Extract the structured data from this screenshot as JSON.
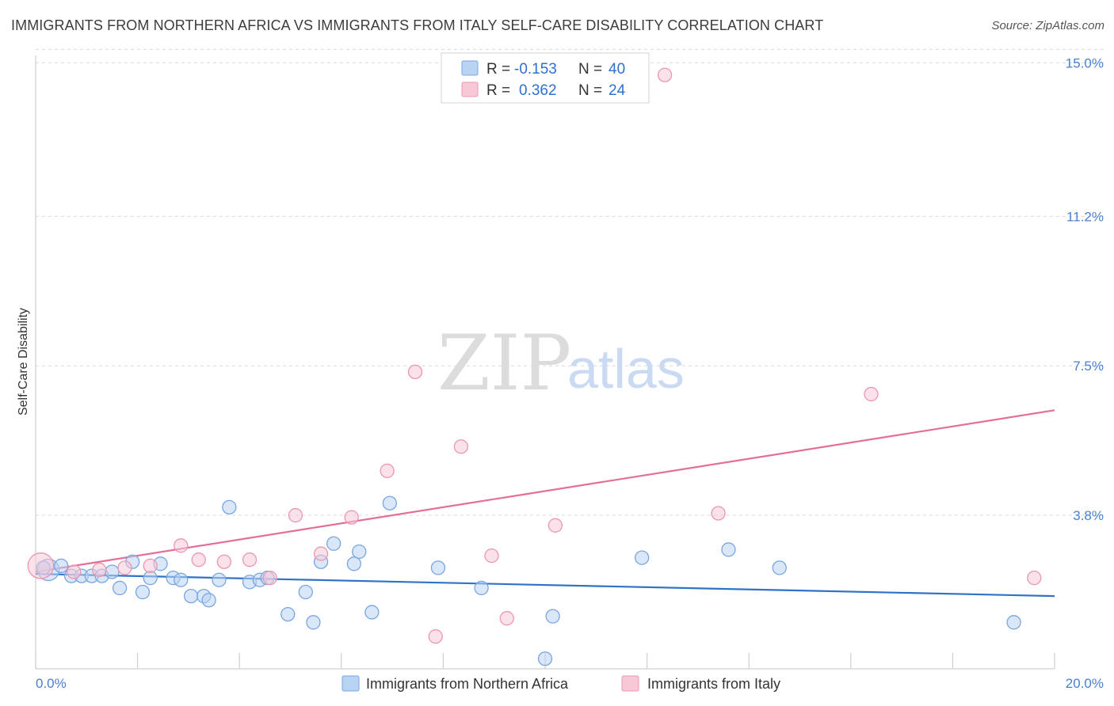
{
  "title": "IMMIGRANTS FROM NORTHERN AFRICA VS IMMIGRANTS FROM ITALY SELF-CARE DISABILITY CORRELATION CHART",
  "source": "Source: ZipAtlas.com",
  "watermark": {
    "zip": "ZIP",
    "atlas": "atlas"
  },
  "colors": {
    "blue_fill": "#b9d3f3",
    "blue_stroke": "#7aa6e0",
    "blue_line": "#2f72c8",
    "pink_fill": "#f8c8d7",
    "pink_stroke": "#ec97b2",
    "pink_line": "#e36f97",
    "tick_text": "#4a7fd0",
    "grid": "#d9d9d9"
  },
  "stats": {
    "row1": {
      "r_label": "R =",
      "r_value": "-0.153",
      "n_label": "N =",
      "n_value": "40"
    },
    "row2": {
      "r_label": "R =",
      "r_value": "0.362",
      "n_label": "N =",
      "n_value": "24"
    }
  },
  "chart_data": {
    "type": "scatter",
    "title": "IMMIGRANTS FROM NORTHERN AFRICA VS IMMIGRANTS FROM ITALY SELF-CARE DISABILITY CORRELATION CHART",
    "xlabel": "",
    "ylabel": "Self-Care Disability",
    "xlim": [
      0,
      20
    ],
    "ylim": [
      0,
      15.4
    ],
    "x_tick_labels": [
      "0.0%",
      "20.0%"
    ],
    "y_ticks": [
      3.8,
      7.5,
      11.2,
      15.0
    ],
    "y_tick_labels": [
      "3.8%",
      "7.5%",
      "11.2%",
      "15.0%"
    ],
    "legend": [
      "Immigrants from Northern Africa",
      "Immigrants from Italy"
    ],
    "series": [
      {
        "name": "Immigrants from Northern Africa",
        "color": "blue",
        "trend": {
          "x": [
            0,
            20
          ],
          "y": [
            2.35,
            1.8
          ]
        },
        "points": [
          {
            "x": 0.25,
            "y": 2.45,
            "s": 1.6
          },
          {
            "x": 0.5,
            "y": 2.55,
            "s": 1
          },
          {
            "x": 0.7,
            "y": 2.3,
            "s": 1
          },
          {
            "x": 0.9,
            "y": 2.3,
            "s": 1
          },
          {
            "x": 1.1,
            "y": 2.3,
            "s": 1
          },
          {
            "x": 1.3,
            "y": 2.3,
            "s": 1
          },
          {
            "x": 1.5,
            "y": 2.4,
            "s": 1
          },
          {
            "x": 1.65,
            "y": 2.0,
            "s": 1
          },
          {
            "x": 1.9,
            "y": 2.65,
            "s": 1
          },
          {
            "x": 2.1,
            "y": 1.9,
            "s": 1
          },
          {
            "x": 2.25,
            "y": 2.25,
            "s": 1
          },
          {
            "x": 2.45,
            "y": 2.6,
            "s": 1
          },
          {
            "x": 2.7,
            "y": 2.25,
            "s": 1
          },
          {
            "x": 2.85,
            "y": 2.2,
            "s": 1
          },
          {
            "x": 3.05,
            "y": 1.8,
            "s": 1
          },
          {
            "x": 3.3,
            "y": 1.8,
            "s": 1
          },
          {
            "x": 3.4,
            "y": 1.7,
            "s": 1
          },
          {
            "x": 3.6,
            "y": 2.2,
            "s": 1
          },
          {
            "x": 3.8,
            "y": 4.0,
            "s": 1
          },
          {
            "x": 4.2,
            "y": 2.15,
            "s": 1
          },
          {
            "x": 4.4,
            "y": 2.2,
            "s": 1
          },
          {
            "x": 4.55,
            "y": 2.25,
            "s": 1
          },
          {
            "x": 4.95,
            "y": 1.35,
            "s": 1
          },
          {
            "x": 5.3,
            "y": 1.9,
            "s": 1
          },
          {
            "x": 5.45,
            "y": 1.15,
            "s": 1
          },
          {
            "x": 5.6,
            "y": 2.65,
            "s": 1
          },
          {
            "x": 5.85,
            "y": 3.1,
            "s": 1
          },
          {
            "x": 6.25,
            "y": 2.6,
            "s": 1
          },
          {
            "x": 6.35,
            "y": 2.9,
            "s": 1
          },
          {
            "x": 6.6,
            "y": 1.4,
            "s": 1
          },
          {
            "x": 6.95,
            "y": 4.1,
            "s": 1
          },
          {
            "x": 7.9,
            "y": 2.5,
            "s": 1
          },
          {
            "x": 8.75,
            "y": 2.0,
            "s": 1
          },
          {
            "x": 10.0,
            "y": 0.25,
            "s": 1
          },
          {
            "x": 10.15,
            "y": 1.3,
            "s": 1
          },
          {
            "x": 11.9,
            "y": 2.75,
            "s": 1
          },
          {
            "x": 13.6,
            "y": 2.95,
            "s": 1
          },
          {
            "x": 14.6,
            "y": 2.5,
            "s": 1
          },
          {
            "x": 19.2,
            "y": 1.15,
            "s": 1
          },
          {
            "x": 0.15,
            "y": 2.5,
            "s": 1
          }
        ]
      },
      {
        "name": "Immigrants from Italy",
        "color": "pink",
        "trend": {
          "x": [
            0,
            20
          ],
          "y": [
            2.4,
            6.4
          ]
        },
        "points": [
          {
            "x": 0.1,
            "y": 2.55,
            "s": 1.9
          },
          {
            "x": 0.75,
            "y": 2.4,
            "s": 1
          },
          {
            "x": 1.25,
            "y": 2.45,
            "s": 1
          },
          {
            "x": 1.75,
            "y": 2.5,
            "s": 1
          },
          {
            "x": 2.25,
            "y": 2.55,
            "s": 1
          },
          {
            "x": 2.85,
            "y": 3.05,
            "s": 1
          },
          {
            "x": 3.2,
            "y": 2.7,
            "s": 1
          },
          {
            "x": 3.7,
            "y": 2.65,
            "s": 1
          },
          {
            "x": 4.2,
            "y": 2.7,
            "s": 1
          },
          {
            "x": 4.6,
            "y": 2.25,
            "s": 1
          },
          {
            "x": 5.1,
            "y": 3.8,
            "s": 1
          },
          {
            "x": 5.6,
            "y": 2.85,
            "s": 1
          },
          {
            "x": 6.2,
            "y": 3.75,
            "s": 1
          },
          {
            "x": 6.9,
            "y": 4.9,
            "s": 1
          },
          {
            "x": 7.45,
            "y": 7.35,
            "s": 1
          },
          {
            "x": 7.85,
            "y": 0.8,
            "s": 1
          },
          {
            "x": 8.35,
            "y": 5.5,
            "s": 1
          },
          {
            "x": 8.95,
            "y": 2.8,
            "s": 1
          },
          {
            "x": 9.25,
            "y": 1.25,
            "s": 1
          },
          {
            "x": 10.2,
            "y": 3.55,
            "s": 1
          },
          {
            "x": 12.35,
            "y": 14.7,
            "s": 1
          },
          {
            "x": 13.4,
            "y": 3.85,
            "s": 1
          },
          {
            "x": 16.4,
            "y": 6.8,
            "s": 1
          },
          {
            "x": 19.6,
            "y": 2.25,
            "s": 1
          }
        ]
      }
    ]
  }
}
